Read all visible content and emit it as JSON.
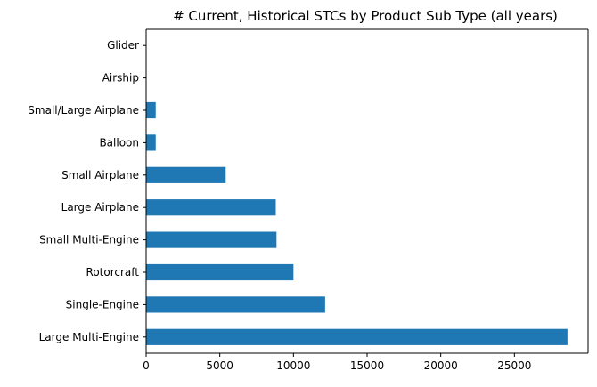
{
  "chart_data": {
    "type": "bar",
    "orientation": "horizontal",
    "title": "# Current, Historical STCs by Product Sub Type  (all years)",
    "xlabel": "",
    "ylabel": "",
    "categories": [
      "Large Multi-Engine",
      "Single-Engine",
      "Rotorcraft",
      "Small Multi-Engine",
      "Large Airplane",
      "Small Airplane",
      "Balloon",
      "Small/Large Airplane",
      "Airship",
      "Glider"
    ],
    "values": [
      28600,
      12150,
      10000,
      8850,
      8800,
      5400,
      650,
      650,
      0,
      0
    ],
    "xlim": [
      0,
      30000
    ],
    "xticks": [
      0,
      5000,
      10000,
      15000,
      20000,
      25000
    ],
    "bar_color": "#1f77b4",
    "grid": false,
    "legend": "none"
  }
}
